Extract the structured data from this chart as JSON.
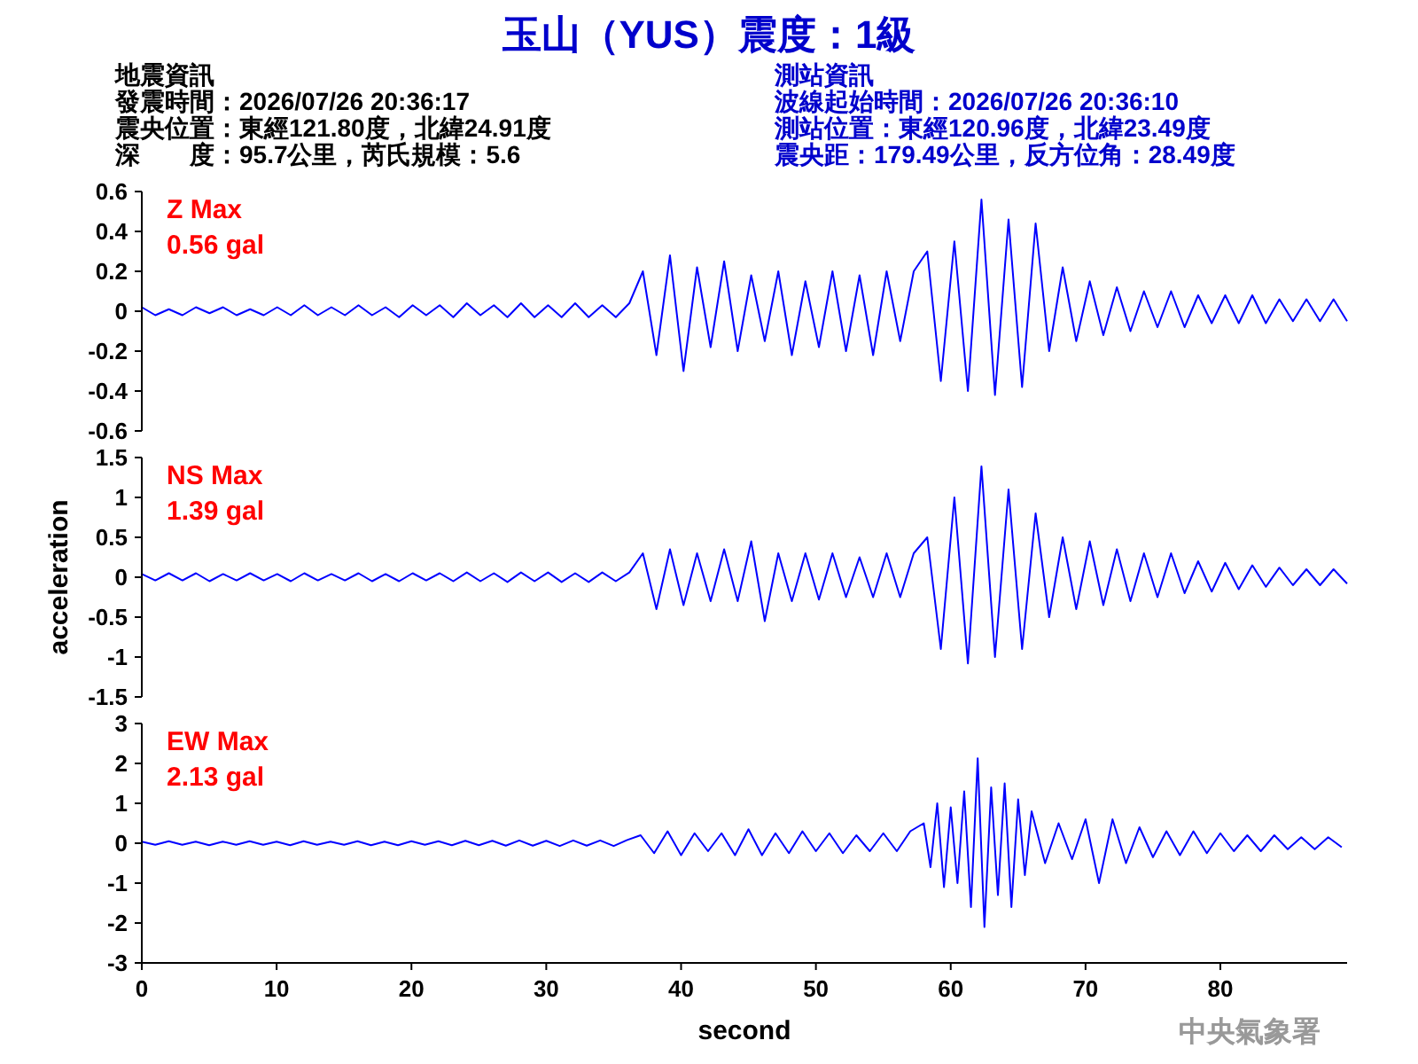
{
  "chart_data": [
    {
      "type": "line",
      "title": "玉山（YUS）震度：1級",
      "annotations": [
        "Z Max",
        "0.56 gal",
        "地震資訊",
        "發震時間：2026/07/26 20:36:17",
        "震央位置：東經121.80度，北緯24.91度",
        "深　　度：95.7公里，芮氏規模：5.6",
        "測站資訊",
        "波線起始時間：2026/07/26 20:36:10",
        "測站位置：東經120.96度，北緯23.49度",
        "震央距：179.49公里，反方位角：28.49度"
      ],
      "categories": [
        null,
        null,
        null,
        null,
        null,
        null,
        null,
        null,
        null,
        null,
        null,
        null,
        null,
        null,
        null,
        null,
        null,
        null,
        null,
        null,
        null,
        null,
        null,
        null,
        null,
        null,
        null,
        null,
        null,
        null,
        null,
        null,
        null,
        null,
        null,
        null,
        null,
        null,
        null,
        null,
        null,
        null,
        null,
        null,
        null,
        null,
        null,
        null,
        null,
        null,
        null,
        null,
        null,
        null,
        null,
        null,
        null,
        null,
        null,
        null,
        null,
        null,
        null,
        null,
        null,
        null,
        null,
        null,
        null,
        null,
        null,
        null,
        null,
        null,
        null,
        null,
        null,
        null,
        null,
        null,
        null,
        null,
        null,
        null,
        null,
        null,
        null,
        null,
        null,
        null
      ],
      "ylim": [
        -0.6,
        0.6
      ],
      "yticks": [
        -0.6,
        -0.4,
        -0.2,
        0,
        0.2,
        0.4,
        0.6
      ],
      "tick_labels": "y",
      "series": [
        {
          "color": "#0000ff",
          "values": [
            0.02,
            -0.02,
            0.01,
            -0.02,
            0.02,
            -0.01,
            0.02,
            -0.02,
            0.01,
            -0.02,
            0.02,
            -0.02,
            0.03,
            -0.02,
            0.02,
            -0.02,
            0.03,
            -0.02,
            0.02,
            -0.03,
            0.03,
            -0.02,
            0.03,
            -0.03,
            0.04,
            -0.02,
            0.03,
            -0.03,
            0.04,
            -0.03,
            0.03,
            -0.03,
            0.04,
            -0.03,
            0.03,
            -0.03,
            0.04,
            0.2,
            -0.22,
            0.28,
            -0.3,
            0.22,
            -0.18,
            0.25,
            -0.2,
            0.18,
            -0.15,
            0.2,
            -0.22,
            0.15,
            -0.18,
            0.2,
            -0.2,
            0.18,
            -0.22,
            0.2,
            -0.15,
            0.2,
            0.3,
            -0.35,
            0.35,
            -0.4,
            0.56,
            -0.42,
            0.46,
            -0.38,
            0.44,
            -0.2,
            0.22,
            -0.15,
            0.15,
            -0.12,
            0.12,
            -0.1,
            0.1,
            -0.08,
            0.1,
            -0.08,
            0.08,
            -0.06,
            0.08,
            -0.06,
            0.08,
            -0.06,
            0.06,
            -0.05,
            0.06,
            -0.05,
            0.06,
            -0.05
          ]
        }
      ]
    },
    {
      "type": "line",
      "ylabel": "acceleration",
      "annotations": [
        "NS Max",
        "1.39 gal"
      ],
      "categories": [
        null,
        null,
        null,
        null,
        null,
        null,
        null,
        null,
        null,
        null,
        null,
        null,
        null,
        null,
        null,
        null,
        null,
        null,
        null,
        null,
        null,
        null,
        null,
        null,
        null,
        null,
        null,
        null,
        null,
        null,
        null,
        null,
        null,
        null,
        null,
        null,
        null,
        null,
        null,
        null,
        null,
        null,
        null,
        null,
        null,
        null,
        null,
        null,
        null,
        null,
        null,
        null,
        null,
        null,
        null,
        null,
        null,
        null,
        null,
        null,
        null,
        null,
        null,
        null,
        null,
        null,
        null,
        null,
        null,
        null,
        null,
        null,
        null,
        null,
        null,
        null,
        null,
        null,
        null,
        null,
        null,
        null,
        null,
        null,
        null,
        null,
        null,
        null,
        null,
        null
      ],
      "ylim": [
        -1.5,
        1.5
      ],
      "yticks": [
        -1.5,
        -1,
        -0.5,
        0,
        0.5,
        1,
        1.5
      ],
      "tick_labels": "y",
      "series": [
        {
          "color": "#0000ff",
          "values": [
            0.04,
            -0.04,
            0.05,
            -0.04,
            0.05,
            -0.05,
            0.04,
            -0.04,
            0.05,
            -0.04,
            0.04,
            -0.05,
            0.05,
            -0.04,
            0.04,
            -0.04,
            0.05,
            -0.05,
            0.04,
            -0.05,
            0.05,
            -0.04,
            0.05,
            -0.05,
            0.06,
            -0.05,
            0.05,
            -0.06,
            0.06,
            -0.05,
            0.06,
            -0.06,
            0.05,
            -0.06,
            0.06,
            -0.05,
            0.06,
            0.3,
            -0.4,
            0.35,
            -0.35,
            0.3,
            -0.3,
            0.35,
            -0.3,
            0.45,
            -0.55,
            0.3,
            -0.3,
            0.3,
            -0.28,
            0.3,
            -0.25,
            0.25,
            -0.25,
            0.3,
            -0.25,
            0.3,
            0.5,
            -0.9,
            1.0,
            -1.08,
            1.39,
            -1.0,
            1.1,
            -0.9,
            0.8,
            -0.5,
            0.5,
            -0.4,
            0.45,
            -0.35,
            0.35,
            -0.3,
            0.3,
            -0.25,
            0.3,
            -0.2,
            0.2,
            -0.18,
            0.18,
            -0.15,
            0.15,
            -0.12,
            0.12,
            -0.1,
            0.1,
            -0.1,
            0.1,
            -0.08
          ]
        }
      ]
    },
    {
      "type": "line",
      "xlabel": "second",
      "annotations": [
        "EW Max",
        "2.13 gal",
        "中央氣象署"
      ],
      "xlim": [
        0,
        89.4
      ],
      "xticks": [
        0,
        10,
        20,
        30,
        40,
        50,
        60,
        70,
        80
      ],
      "ylim": [
        -3,
        3
      ],
      "yticks": [
        -3,
        -2,
        -1,
        0,
        1,
        2,
        3
      ],
      "series": [
        {
          "color": "#0000ff",
          "x": [
            0,
            1,
            2,
            3,
            4,
            5,
            6,
            7,
            8,
            9,
            10,
            11,
            12,
            13,
            14,
            15,
            16,
            17,
            18,
            19,
            20,
            21,
            22,
            23,
            24,
            25,
            26,
            27,
            28,
            29,
            30,
            31,
            32,
            33,
            34,
            35,
            36,
            37,
            38,
            39,
            40,
            41,
            42,
            43,
            44,
            45,
            46,
            47,
            48,
            49,
            50,
            51,
            52,
            53,
            54,
            55,
            56,
            57,
            58,
            58.5,
            59,
            59.5,
            60,
            60.5,
            61,
            61.5,
            62,
            62.5,
            63,
            63.5,
            64,
            64.5,
            65,
            65.5,
            66,
            67,
            68,
            69,
            70,
            71,
            72,
            73,
            74,
            75,
            76,
            77,
            78,
            79,
            80,
            81,
            82,
            83,
            84,
            85,
            86,
            87,
            88,
            89
          ],
          "values": [
            0.04,
            -0.04,
            0.05,
            -0.04,
            0.04,
            -0.05,
            0.04,
            -0.04,
            0.05,
            -0.04,
            0.04,
            -0.05,
            0.05,
            -0.04,
            0.04,
            -0.04,
            0.05,
            -0.05,
            0.04,
            -0.05,
            0.05,
            -0.04,
            0.05,
            -0.05,
            0.06,
            -0.05,
            0.06,
            -0.06,
            0.07,
            -0.06,
            0.06,
            -0.07,
            0.07,
            -0.06,
            0.07,
            -0.07,
            0.08,
            0.2,
            -0.25,
            0.3,
            -0.3,
            0.25,
            -0.2,
            0.25,
            -0.3,
            0.35,
            -0.3,
            0.25,
            -0.25,
            0.3,
            -0.2,
            0.25,
            -0.25,
            0.2,
            -0.2,
            0.25,
            -0.2,
            0.3,
            0.5,
            -0.6,
            1.0,
            -1.1,
            0.9,
            -1.0,
            1.3,
            -1.6,
            2.13,
            -2.1,
            1.4,
            -1.3,
            1.5,
            -1.6,
            1.1,
            -0.8,
            0.8,
            -0.5,
            0.5,
            -0.4,
            0.6,
            -1.0,
            0.6,
            -0.5,
            0.4,
            -0.35,
            0.3,
            -0.3,
            0.3,
            -0.25,
            0.25,
            -0.2,
            0.2,
            -0.2,
            0.2,
            -0.15,
            0.15,
            -0.15,
            0.15,
            -0.1
          ]
        }
      ]
    }
  ]
}
